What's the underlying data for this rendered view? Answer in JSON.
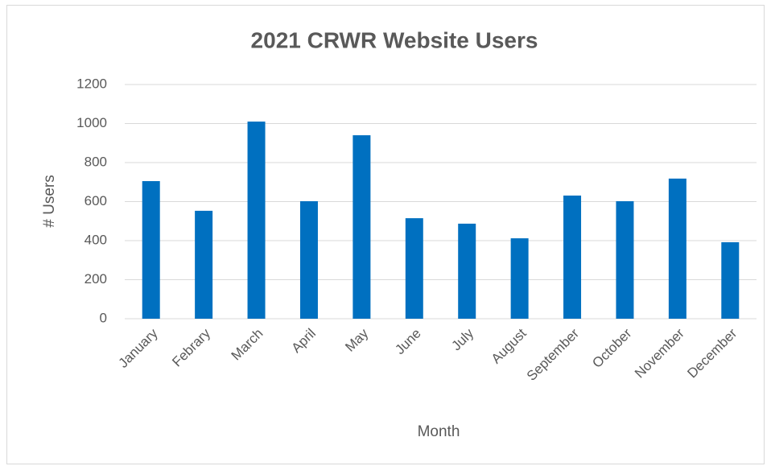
{
  "chart_data": {
    "type": "bar",
    "title": "2021 CRWR Website Users",
    "x_label": "Month",
    "y_label": "# Users",
    "categories": [
      "January",
      "Febrary",
      "March",
      "April",
      "May",
      "June",
      "July",
      "August",
      "September",
      "October",
      "November",
      "December"
    ],
    "values": [
      705,
      553,
      1010,
      602,
      940,
      515,
      487,
      412,
      631,
      602,
      718,
      392
    ],
    "color": "#0070c0",
    "ylim": [
      0,
      1200
    ],
    "yticks": [
      0,
      200,
      400,
      600,
      800,
      1000,
      1200
    ],
    "grid": true
  }
}
